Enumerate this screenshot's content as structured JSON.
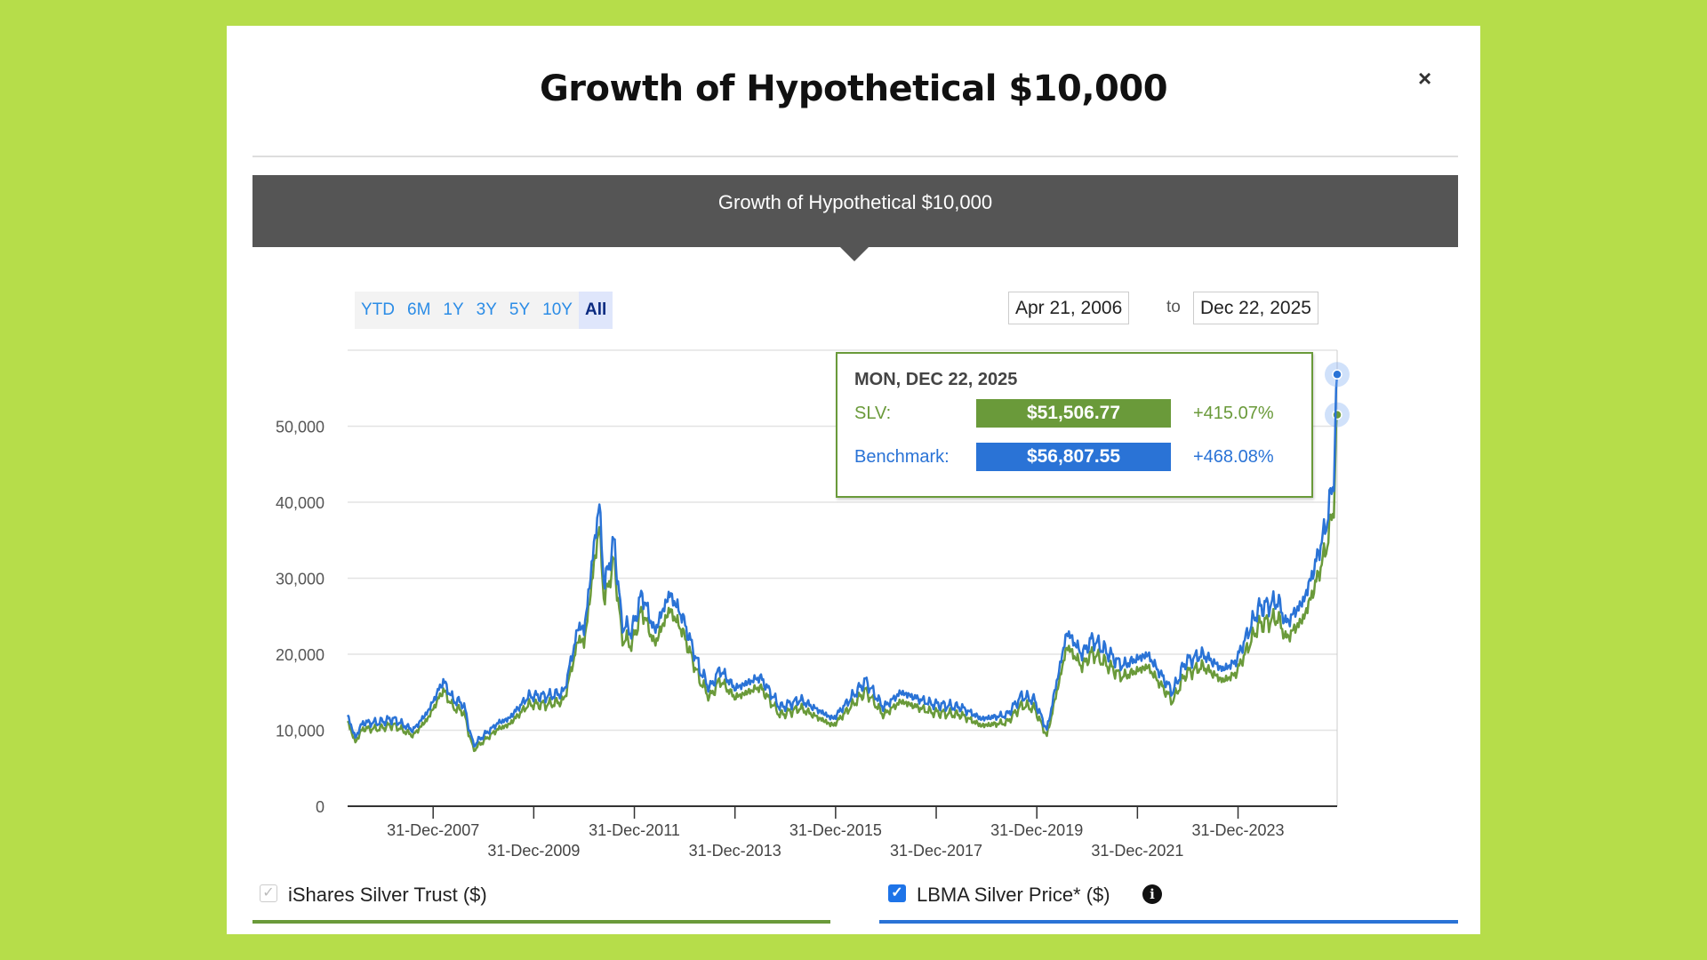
{
  "modal": {
    "title": "Growth of Hypothetical $10,000",
    "close_icon": "×"
  },
  "banner": {
    "title": "Growth of Hypothetical $10,000"
  },
  "ranges": [
    {
      "label": "YTD"
    },
    {
      "label": "6M"
    },
    {
      "label": "1Y"
    },
    {
      "label": "3Y"
    },
    {
      "label": "5Y"
    },
    {
      "label": "10Y"
    },
    {
      "label": "All",
      "active": true
    }
  ],
  "date_range": {
    "from": "Apr 21, 2006",
    "to_label": "to",
    "to": "Dec 22, 2025"
  },
  "tooltip": {
    "date": "MON, DEC 22, 2025",
    "slv_label": "SLV:",
    "slv_value": "$51,506.77",
    "slv_pct": "+415.07%",
    "bench_label": "Benchmark:",
    "bench_value": "$56,807.55",
    "bench_pct": "+468.08%"
  },
  "legend": {
    "slv": "iShares Silver Trust ($)",
    "bench": "LBMA Silver Price* ($)",
    "info_icon": "i"
  },
  "colors": {
    "slv": "#6a9a3a",
    "bench": "#2a73d6"
  },
  "chart_data": {
    "type": "line",
    "title": "Growth of Hypothetical $10,000",
    "ylim": [
      0,
      60000
    ],
    "xlim": [
      2006.3,
      2025.97
    ],
    "yticks": [
      0,
      10000,
      20000,
      30000,
      40000,
      50000
    ],
    "ytick_labels": [
      "0",
      "10,000",
      "20,000",
      "30,000",
      "40,000",
      "50,000"
    ],
    "xticks": [
      {
        "x": 2008.0,
        "label": "31-Dec-2007",
        "row": 0
      },
      {
        "x": 2010.0,
        "label": "31-Dec-2009",
        "row": 1
      },
      {
        "x": 2012.0,
        "label": "31-Dec-2011",
        "row": 0
      },
      {
        "x": 2014.0,
        "label": "31-Dec-2013",
        "row": 1
      },
      {
        "x": 2016.0,
        "label": "31-Dec-2015",
        "row": 0
      },
      {
        "x": 2018.0,
        "label": "31-Dec-2017",
        "row": 1
      },
      {
        "x": 2020.0,
        "label": "31-Dec-2019",
        "row": 0
      },
      {
        "x": 2022.0,
        "label": "31-Dec-2021",
        "row": 1
      },
      {
        "x": 2024.0,
        "label": "31-Dec-2023",
        "row": 0
      }
    ],
    "series": [
      {
        "name": "iShares Silver Trust ($)",
        "key": "slv",
        "points": [
          [
            2006.3,
            11200
          ],
          [
            2006.45,
            8400
          ],
          [
            2006.6,
            10200
          ],
          [
            2006.9,
            10200
          ],
          [
            2007.2,
            10700
          ],
          [
            2007.6,
            9300
          ],
          [
            2007.9,
            11600
          ],
          [
            2008.2,
            15300
          ],
          [
            2008.4,
            13000
          ],
          [
            2008.6,
            12500
          ],
          [
            2008.8,
            7400
          ],
          [
            2008.95,
            8300
          ],
          [
            2009.3,
            10200
          ],
          [
            2009.5,
            10700
          ],
          [
            2009.9,
            13400
          ],
          [
            2010.3,
            13400
          ],
          [
            2010.6,
            13900
          ],
          [
            2010.9,
            22300
          ],
          [
            2011.0,
            21300
          ],
          [
            2011.3,
            37000
          ],
          [
            2011.4,
            26900
          ],
          [
            2011.6,
            32400
          ],
          [
            2011.75,
            22200
          ],
          [
            2011.95,
            21300
          ],
          [
            2012.15,
            25900
          ],
          [
            2012.4,
            21300
          ],
          [
            2012.7,
            25900
          ],
          [
            2012.95,
            23100
          ],
          [
            2013.3,
            16600
          ],
          [
            2013.5,
            14300
          ],
          [
            2013.7,
            16600
          ],
          [
            2014.0,
            14300
          ],
          [
            2014.5,
            15700
          ],
          [
            2014.9,
            12000
          ],
          [
            2015.3,
            12900
          ],
          [
            2015.95,
            10600
          ],
          [
            2016.6,
            15200
          ],
          [
            2016.95,
            12000
          ],
          [
            2017.3,
            13800
          ],
          [
            2017.9,
            12400
          ],
          [
            2018.5,
            12000
          ],
          [
            2018.9,
            10600
          ],
          [
            2019.4,
            11000
          ],
          [
            2019.7,
            13300
          ],
          [
            2019.95,
            12900
          ],
          [
            2020.2,
            9200
          ],
          [
            2020.6,
            21100
          ],
          [
            2020.9,
            18400
          ],
          [
            2021.1,
            20200
          ],
          [
            2021.7,
            17000
          ],
          [
            2022.2,
            18400
          ],
          [
            2022.7,
            13800
          ],
          [
            2022.95,
            17400
          ],
          [
            2023.3,
            18400
          ],
          [
            2023.7,
            16500
          ],
          [
            2023.95,
            17400
          ],
          [
            2024.4,
            23800
          ],
          [
            2024.8,
            24800
          ],
          [
            2024.95,
            22000
          ],
          [
            2025.3,
            24700
          ],
          [
            2025.5,
            28400
          ],
          [
            2025.75,
            33900
          ],
          [
            2025.85,
            37600
          ],
          [
            2025.9,
            39400
          ],
          [
            2025.97,
            51506.77
          ]
        ]
      },
      {
        "name": "LBMA Silver Price* ($)",
        "key": "bench",
        "points": [
          [
            2006.3,
            12000
          ],
          [
            2006.45,
            9000
          ],
          [
            2006.6,
            11000
          ],
          [
            2006.9,
            11000
          ],
          [
            2007.2,
            11500
          ],
          [
            2007.6,
            10000
          ],
          [
            2007.9,
            12500
          ],
          [
            2008.2,
            16500
          ],
          [
            2008.4,
            14000
          ],
          [
            2008.6,
            13500
          ],
          [
            2008.8,
            8000
          ],
          [
            2008.95,
            9000
          ],
          [
            2009.3,
            11000
          ],
          [
            2009.5,
            11500
          ],
          [
            2009.9,
            14500
          ],
          [
            2010.3,
            14500
          ],
          [
            2010.6,
            15000
          ],
          [
            2010.9,
            24000
          ],
          [
            2011.0,
            23000
          ],
          [
            2011.3,
            40000
          ],
          [
            2011.4,
            29000
          ],
          [
            2011.6,
            35000
          ],
          [
            2011.75,
            24000
          ],
          [
            2011.95,
            23000
          ],
          [
            2012.15,
            28000
          ],
          [
            2012.4,
            23000
          ],
          [
            2012.7,
            28000
          ],
          [
            2012.95,
            25000
          ],
          [
            2013.3,
            18000
          ],
          [
            2013.5,
            15500
          ],
          [
            2013.7,
            18000
          ],
          [
            2014.0,
            15500
          ],
          [
            2014.5,
            17000
          ],
          [
            2014.9,
            13000
          ],
          [
            2015.3,
            14000
          ],
          [
            2015.95,
            11500
          ],
          [
            2016.6,
            16500
          ],
          [
            2016.95,
            13000
          ],
          [
            2017.3,
            15000
          ],
          [
            2017.9,
            13500
          ],
          [
            2018.5,
            13000
          ],
          [
            2018.9,
            11500
          ],
          [
            2019.4,
            12000
          ],
          [
            2019.7,
            14500
          ],
          [
            2019.95,
            14000
          ],
          [
            2020.2,
            10000
          ],
          [
            2020.6,
            23000
          ],
          [
            2020.9,
            20000
          ],
          [
            2021.1,
            22000
          ],
          [
            2021.7,
            18500
          ],
          [
            2022.2,
            20000
          ],
          [
            2022.7,
            15000
          ],
          [
            2022.95,
            19000
          ],
          [
            2023.3,
            20000
          ],
          [
            2023.7,
            18000
          ],
          [
            2023.95,
            19000
          ],
          [
            2024.4,
            26000
          ],
          [
            2024.8,
            27000
          ],
          [
            2024.95,
            24000
          ],
          [
            2025.3,
            27000
          ],
          [
            2025.5,
            31000
          ],
          [
            2025.75,
            37000
          ],
          [
            2025.85,
            41000
          ],
          [
            2025.9,
            43000
          ],
          [
            2025.97,
            56807.55
          ]
        ]
      }
    ]
  }
}
